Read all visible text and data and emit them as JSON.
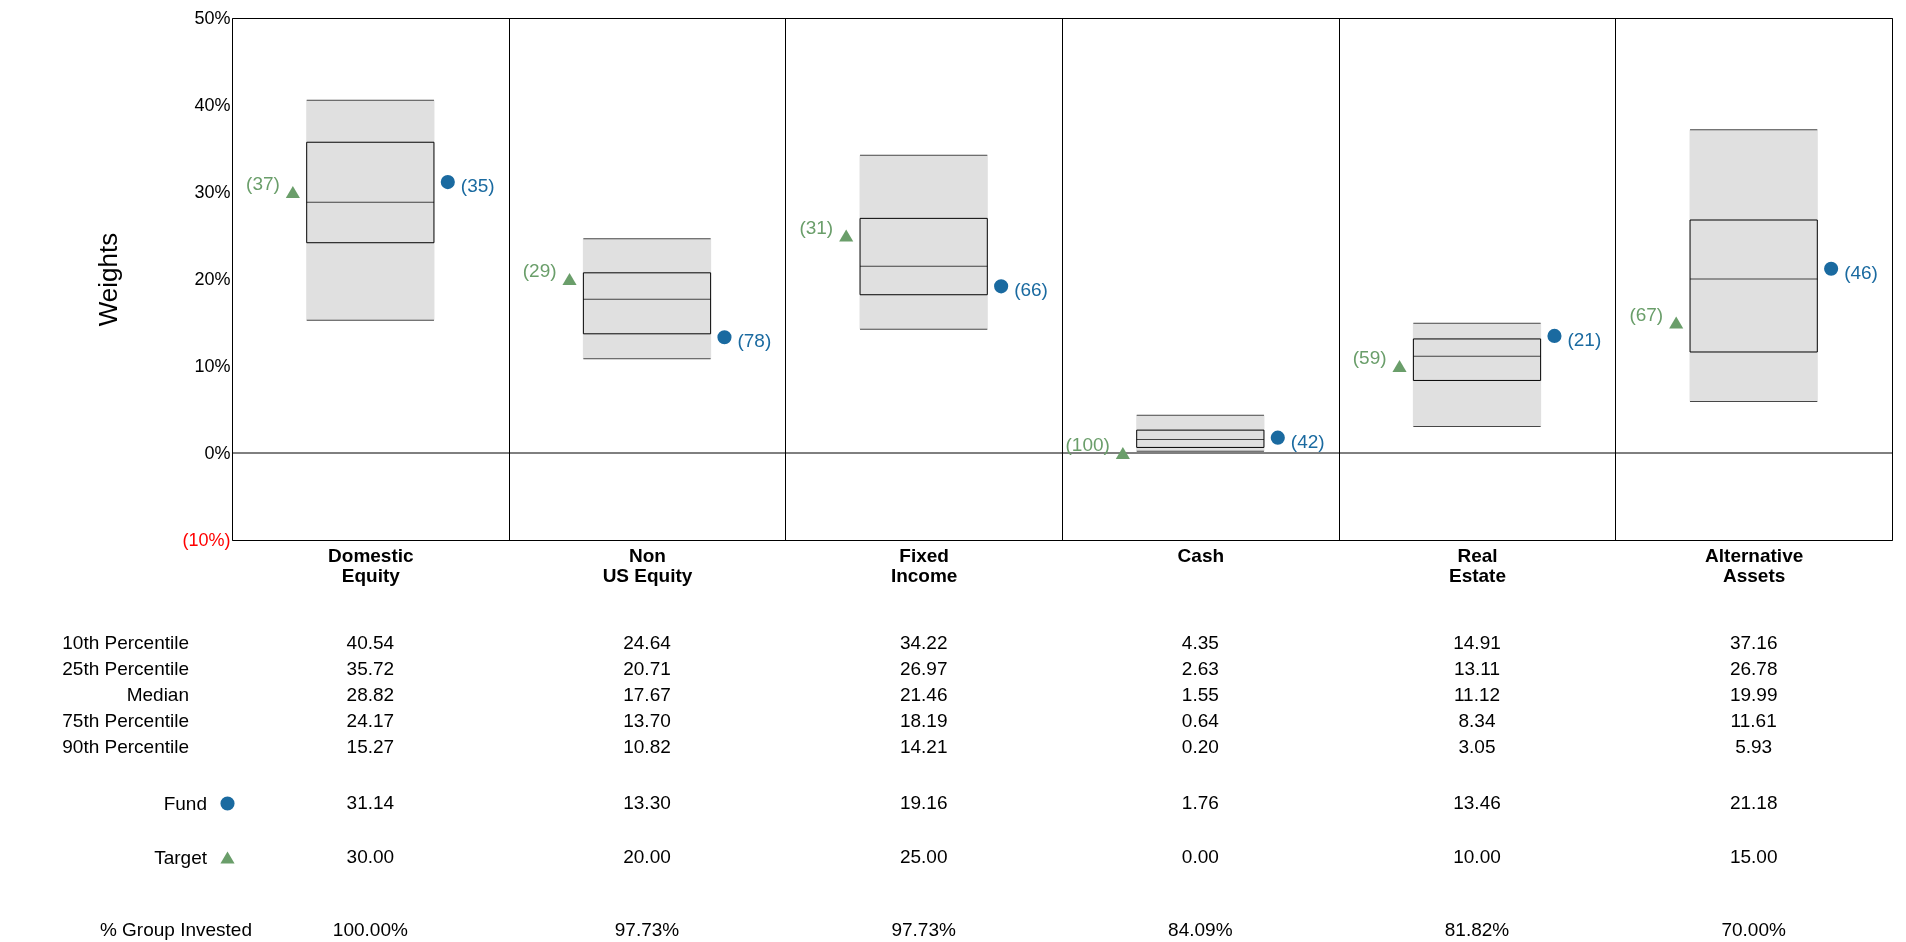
{
  "chart_data": [
    {
      "type": "box",
      "ylabel": "Weights",
      "categories": [
        "Domestic Equity",
        "Non US Equity",
        "Fixed Income",
        "Cash",
        "Real Estate",
        "Alternative Assets"
      ],
      "boxes": [
        {
          "low": 15.27,
          "q1": 24.17,
          "median": 28.82,
          "q3": 35.72,
          "high": 40.54
        },
        {
          "low": 10.82,
          "q1": 13.7,
          "median": 17.67,
          "q3": 20.71,
          "high": 24.64
        },
        {
          "low": 14.21,
          "q1": 18.19,
          "median": 21.46,
          "q3": 26.97,
          "high": 34.22
        },
        {
          "low": 0.2,
          "q1": 0.64,
          "median": 1.55,
          "q3": 2.63,
          "high": 4.35
        },
        {
          "low": 3.05,
          "q1": 8.34,
          "median": 11.12,
          "q3": 13.11,
          "high": 14.91
        },
        {
          "low": 5.93,
          "q1": 11.61,
          "median": 19.99,
          "q3": 26.78,
          "high": 37.16
        }
      ],
      "series": [
        {
          "name": "Fund",
          "type": "scatter",
          "marker": "circle",
          "color": "#1a6aa0",
          "values": [
            31.14,
            13.3,
            19.16,
            1.76,
            13.46,
            21.18
          ]
        },
        {
          "name": "Target",
          "type": "scatter",
          "marker": "triangle",
          "color": "#6a9e6a",
          "values": [
            30.0,
            20.0,
            25.0,
            0.0,
            10.0,
            15.0
          ]
        }
      ],
      "ylim": [
        -10,
        50
      ],
      "yticks": [
        {
          "value": -10,
          "label": "(10%)"
        },
        {
          "value": 0,
          "label": "0%"
        },
        {
          "value": 10,
          "label": "10%"
        },
        {
          "value": 20,
          "label": "20%"
        },
        {
          "value": 30,
          "label": "30%"
        },
        {
          "value": 40,
          "label": "40%"
        },
        {
          "value": 50,
          "label": "50%"
        }
      ],
      "grid": "x",
      "legend": "bottom left",
      "ref_lines": [
        {
          "axis": "y",
          "value": 0
        }
      ],
      "annotations": [
        "(35)",
        "(78)",
        "(66)",
        "(42)",
        "(21)",
        "(46)",
        "(37)",
        "(29)",
        "(31)",
        "(100)",
        "(59)",
        "(67)"
      ]
    },
    {
      "type": "other",
      "categories": [
        null,
        null,
        null,
        null,
        null,
        null
      ],
      "y_categories": [
        "10th Percentile",
        "25th Percentile",
        "Median",
        "75th Percentile",
        "90th Percentile",
        null,
        null,
        "% Group Invested"
      ],
      "cell_labels": [
        [
          "40.54",
          "24.64",
          "34.22",
          "4.35",
          "14.91",
          "37.16"
        ],
        [
          "35.72",
          "20.71",
          "26.97",
          "2.63",
          "13.11",
          "26.78"
        ],
        [
          "28.82",
          "17.67",
          "21.46",
          "1.55",
          "11.12",
          "19.99"
        ],
        [
          "24.17",
          "13.70",
          "18.19",
          "0.64",
          "8.34",
          "11.61"
        ],
        [
          "15.27",
          "10.82",
          "14.21",
          "0.20",
          "3.05",
          "5.93"
        ],
        [
          "31.14",
          "13.30",
          "19.16",
          "1.76",
          "13.46",
          "21.18"
        ],
        [
          "30.00",
          "20.00",
          "25.00",
          "0.00",
          "10.00",
          "15.00"
        ],
        [
          "100.00%",
          "97.73%",
          "97.73%",
          "84.09%",
          "81.82%",
          "70.00%"
        ]
      ]
    }
  ]
}
